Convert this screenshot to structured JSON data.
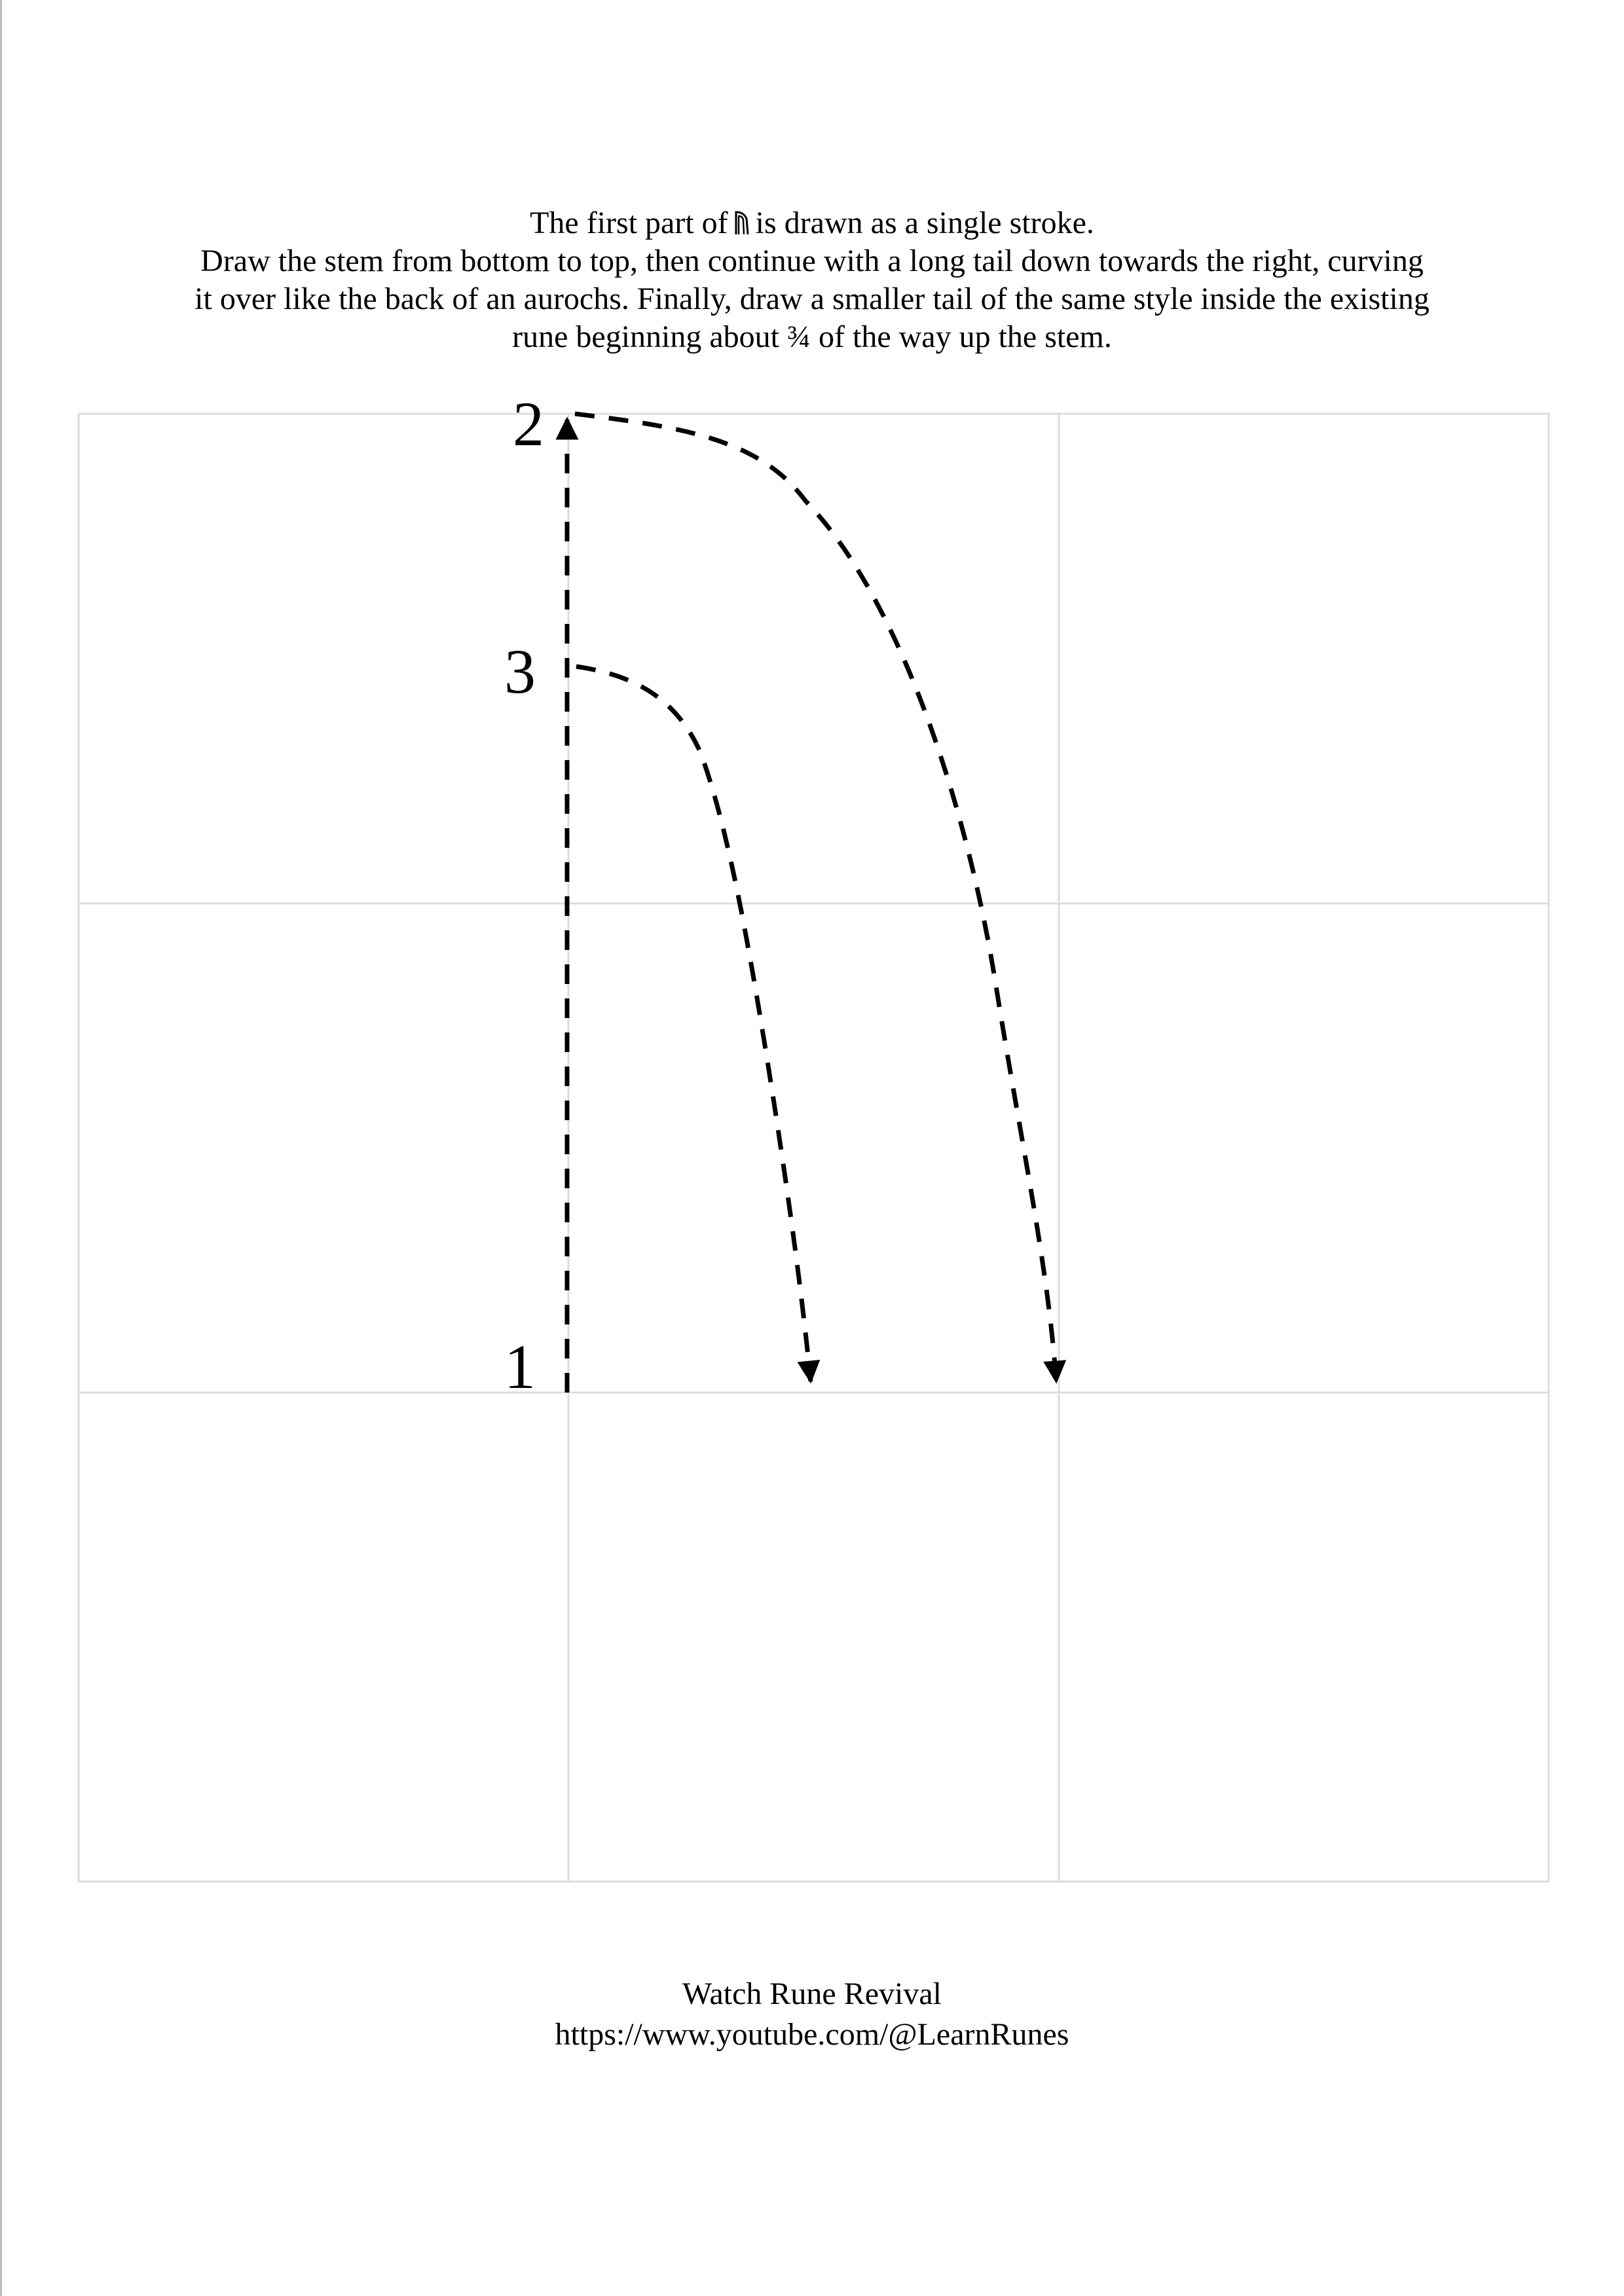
{
  "instructions": {
    "line1_before_rune": "The first part of",
    "line1_after_rune": "is drawn as a single stroke.",
    "line2": "Draw the stem from bottom to top, then continue with a long tail down towards the right, curving",
    "line3": "it over like the back of an aurochs. Finally, draw a smaller tail of the same style inside the existing",
    "line4": "rune beginning about ¾ of the way up the stem."
  },
  "rune_icon": "ur-rune-icon",
  "stroke_labels": {
    "start": "1",
    "top": "2",
    "inner_start": "3"
  },
  "footer": {
    "title": "Watch Rune Revival",
    "url": "https://www.youtube.com/@LearnRunes"
  },
  "colors": {
    "grid": "#dcdcdc",
    "stroke": "#000000",
    "text": "#000000"
  }
}
